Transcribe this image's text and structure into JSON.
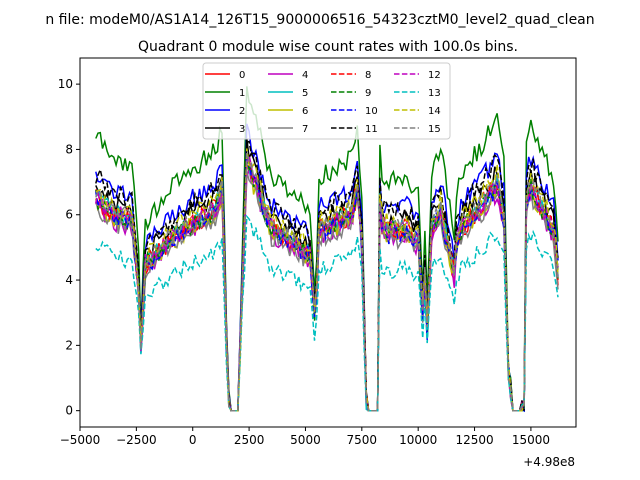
{
  "suptitle": "n file: modeM0/AS1A14_126T15_9000006516_54323cztM0_level2_quad_clean",
  "chart_data": {
    "type": "line",
    "title": "Quadrant 0 module wise count rates with 100.0s bins.",
    "xlabel": "",
    "ylabel": "",
    "x_offset_label": "+4.98e8",
    "xlim": [
      -5000,
      17000
    ],
    "ylim": [
      -0.5,
      10.8
    ],
    "xticks": [
      -5000,
      -2500,
      0,
      2500,
      5000,
      7500,
      10000,
      12500,
      15000
    ],
    "xtick_labels": [
      "−5000",
      "−2500",
      "0",
      "2500",
      "5000",
      "7500",
      "10000",
      "12500",
      "15000"
    ],
    "yticks": [
      0,
      2,
      4,
      6,
      8,
      10
    ],
    "ytick_labels": [
      "0",
      "2",
      "4",
      "6",
      "8",
      "10"
    ],
    "grid": false,
    "legend_position": "top-center",
    "legend_columns": 4,
    "x_range_data": [
      -4300,
      16200
    ],
    "base_profile": {
      "x": [
        -4300,
        -3500,
        -2700,
        -2400,
        -2300,
        -2100,
        -1000,
        0,
        1000,
        1300,
        1450,
        1550,
        1650,
        2000,
        2400,
        3500,
        4500,
        5200,
        5400,
        5500,
        5600,
        6000,
        7000,
        7300,
        7500,
        7700,
        7800,
        8200,
        8300,
        8400,
        8700,
        9500,
        10000,
        10200,
        10300,
        10400,
        10600,
        11000,
        11600,
        11700,
        11800,
        12000,
        13000,
        13500,
        13800,
        14000,
        14200,
        14300,
        14700,
        14800,
        15000,
        15500,
        16000,
        16200
      ],
      "y": [
        6.6,
        6.0,
        5.9,
        3.8,
        2.0,
        4.5,
        5.3,
        5.8,
        6.2,
        6.8,
        3.5,
        0.7,
        0.0,
        0.0,
        7.7,
        5.6,
        5.2,
        4.8,
        3.0,
        3.8,
        5.6,
        5.7,
        6.0,
        6.8,
        5.2,
        0.3,
        0.0,
        0.0,
        6.5,
        5.7,
        5.5,
        5.6,
        5.2,
        3.0,
        4.2,
        2.5,
        5.6,
        6.2,
        4.2,
        5.2,
        5.4,
        5.7,
        6.5,
        7.0,
        6.0,
        1.2,
        0.0,
        0.0,
        0.1,
        6.6,
        6.9,
        6.2,
        5.6,
        4.2
      ]
    },
    "series": [
      {
        "name": "0",
        "color": "#ff0000",
        "dash": "solid",
        "scale": 0.98,
        "noise": 0.3
      },
      {
        "name": "1",
        "color": "#008000",
        "dash": "solid",
        "scale": 1.28,
        "noise": 0.3
      },
      {
        "name": "2",
        "color": "#0000ff",
        "dash": "solid",
        "scale": 1.12,
        "noise": 0.3
      },
      {
        "name": "3",
        "color": "#000000",
        "dash": "solid",
        "scale": 1.05,
        "noise": 0.3
      },
      {
        "name": "4",
        "color": "#bf00bf",
        "dash": "solid",
        "scale": 0.96,
        "noise": 0.3
      },
      {
        "name": "5",
        "color": "#00bfbf",
        "dash": "solid",
        "scale": 1.0,
        "noise": 0.3
      },
      {
        "name": "6",
        "color": "#bfbf00",
        "dash": "solid",
        "scale": 0.97,
        "noise": 0.3
      },
      {
        "name": "7",
        "color": "#808080",
        "dash": "solid",
        "scale": 0.95,
        "noise": 0.3
      },
      {
        "name": "8",
        "color": "#ff0000",
        "dash": "dashed",
        "scale": 1.0,
        "noise": 0.3
      },
      {
        "name": "9",
        "color": "#008000",
        "dash": "dashed",
        "scale": 0.99,
        "noise": 0.3
      },
      {
        "name": "10",
        "color": "#0000ff",
        "dash": "dashed",
        "scale": 0.98,
        "noise": 0.3
      },
      {
        "name": "11",
        "color": "#000000",
        "dash": "dashed",
        "scale": 1.1,
        "noise": 0.3
      },
      {
        "name": "12",
        "color": "#bf00bf",
        "dash": "dashed",
        "scale": 1.0,
        "noise": 0.3
      },
      {
        "name": "13",
        "color": "#00bfbf",
        "dash": "dashed",
        "scale": 0.78,
        "noise": 0.25
      },
      {
        "name": "14",
        "color": "#bfbf00",
        "dash": "dashed",
        "scale": 1.04,
        "noise": 0.3
      },
      {
        "name": "15",
        "color": "#808080",
        "dash": "dashed",
        "scale": 1.01,
        "noise": 0.3
      }
    ]
  }
}
